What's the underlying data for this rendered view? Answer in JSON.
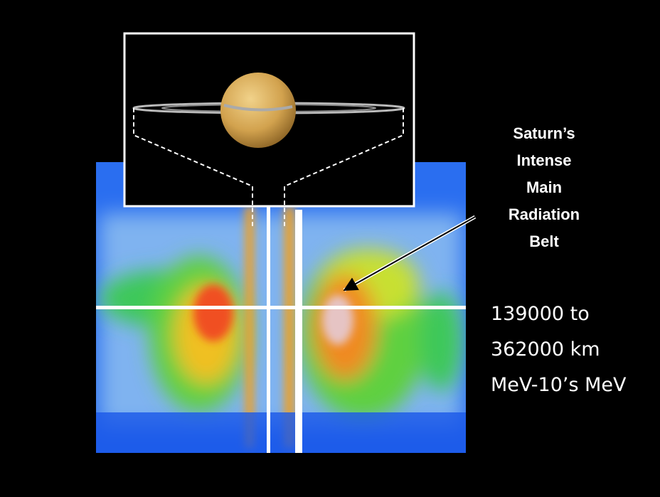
{
  "label": {
    "lines": [
      "Saturn’s",
      "Intense",
      "Main",
      "Radiation",
      "Belt"
    ]
  },
  "facts": [
    "139000 to",
    "362000 km",
    "MeV-10’s MeV"
  ]
}
